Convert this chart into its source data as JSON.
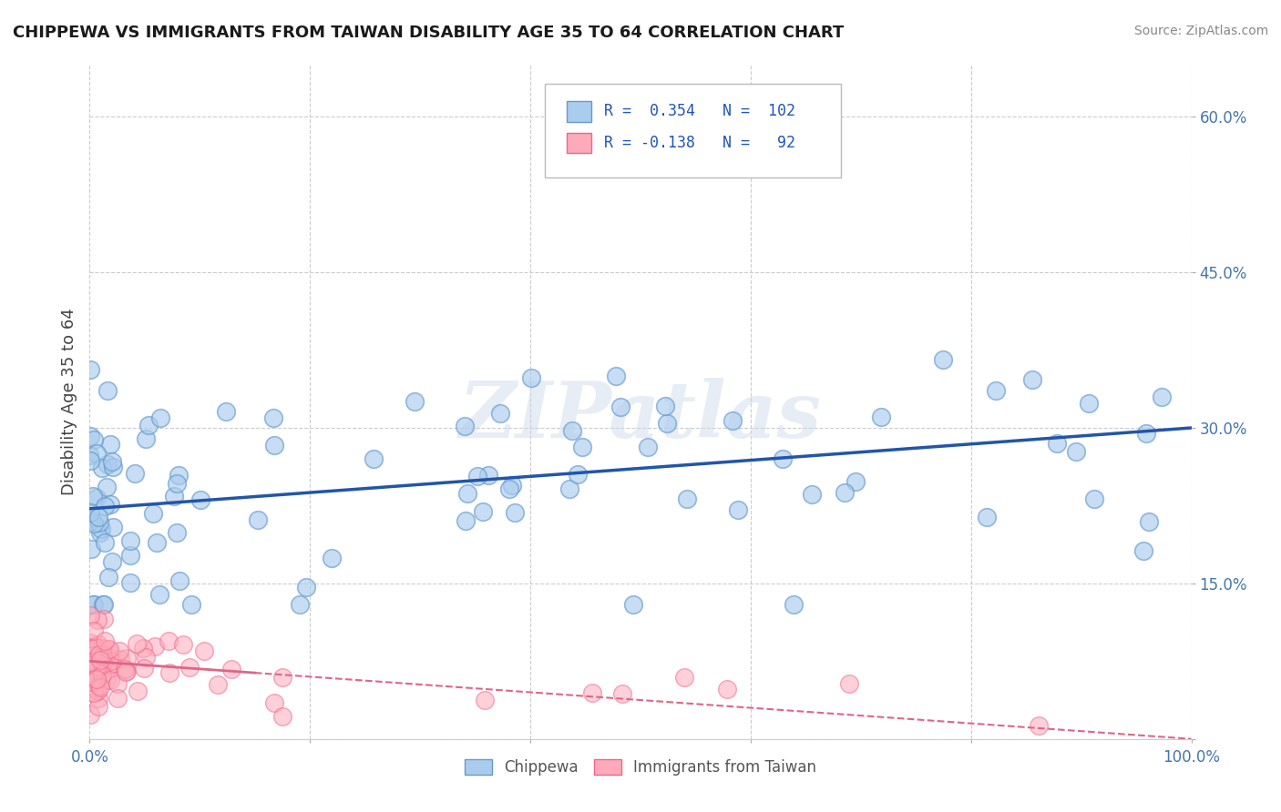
{
  "title": "CHIPPEWA VS IMMIGRANTS FROM TAIWAN DISABILITY AGE 35 TO 64 CORRELATION CHART",
  "source": "Source: ZipAtlas.com",
  "ylabel": "Disability Age 35 to 64",
  "xlim": [
    0.0,
    1.0
  ],
  "ylim": [
    0.0,
    0.65
  ],
  "xticks": [
    0.0,
    0.2,
    0.4,
    0.6,
    0.8,
    1.0
  ],
  "xticklabels": [
    "0.0%",
    "",
    "",
    "",
    "",
    "100.0%"
  ],
  "yticks": [
    0.0,
    0.15,
    0.3,
    0.45,
    0.6
  ],
  "yticklabels": [
    "",
    "15.0%",
    "30.0%",
    "45.0%",
    "60.0%"
  ],
  "grid_color": "#cccccc",
  "background_color": "#ffffff",
  "chippewa_color": "#aaccee",
  "chippewa_edge_color": "#6699cc",
  "taiwan_color": "#ffaabb",
  "taiwan_edge_color": "#ee6688",
  "chippewa_line_color": "#2255aa",
  "taiwan_line_color": "#dd6688",
  "legend_r1": "R =  0.354",
  "legend_n1": "N =  102",
  "legend_r2": "R = -0.138",
  "legend_n2": "N =   92",
  "watermark_text": "ZIPatlas",
  "chippewa_intercept": 0.222,
  "chippewa_slope": 0.078,
  "taiwan_intercept": 0.075,
  "taiwan_slope": -0.075,
  "title_color": "#1a1a1a",
  "source_color": "#888888",
  "axis_label_color": "#444444",
  "tick_color": "#4477aa",
  "legend_text_color": "#2255bb"
}
